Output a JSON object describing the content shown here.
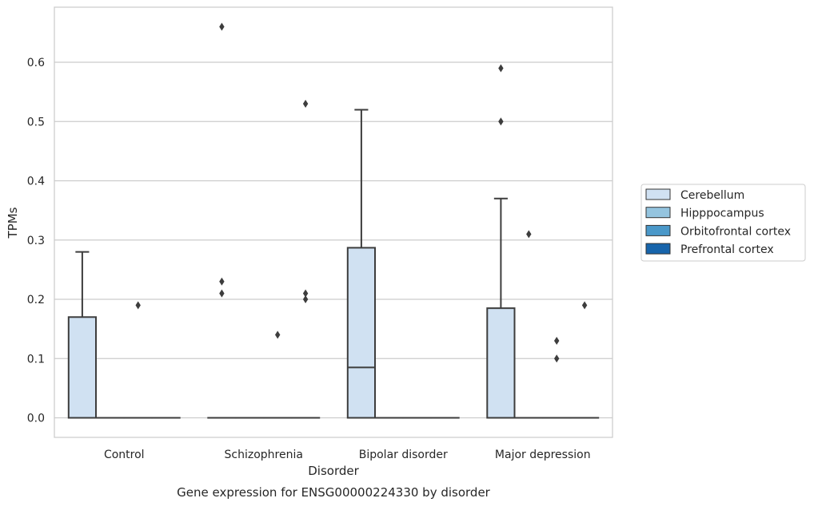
{
  "chart_data": {
    "type": "box",
    "xlabel": "Disorder",
    "ylabel": "TPMs",
    "caption": "Gene expression for ENSG00000224330 by disorder",
    "categories": [
      "Control",
      "Schizophrenia",
      "Bipolar disorder",
      "Major depression"
    ],
    "ylim": [
      -0.033,
      0.693
    ],
    "yticks": [
      0.0,
      0.1,
      0.2,
      0.3,
      0.4,
      0.5,
      0.6
    ],
    "ytick_labels": [
      "0.0",
      "0.1",
      "0.2",
      "0.3",
      "0.4",
      "0.5",
      "0.6"
    ],
    "grid": "horizontal",
    "legend_position": "right",
    "series": [
      {
        "name": "Cerebellum",
        "color": "#d0e1f2",
        "boxes": [
          {
            "q1": 0.0,
            "median": 0.0,
            "q3": 0.17,
            "whisker_low": 0.0,
            "whisker_high": 0.28,
            "outliers": []
          },
          {
            "q1": 0.0,
            "median": 0.0,
            "q3": 0.0,
            "whisker_low": 0.0,
            "whisker_high": 0.0,
            "outliers": [
              0.66,
              0.23,
              0.21
            ]
          },
          {
            "q1": 0.0,
            "median": 0.085,
            "q3": 0.287,
            "whisker_low": 0.0,
            "whisker_high": 0.52,
            "outliers": []
          },
          {
            "q1": 0.0,
            "median": 0.0,
            "q3": 0.185,
            "whisker_low": 0.0,
            "whisker_high": 0.37,
            "outliers": [
              0.59,
              0.5
            ]
          }
        ]
      },
      {
        "name": "Hipppocampus",
        "color": "#94c4df",
        "boxes": [
          {
            "q1": 0.0,
            "median": 0.0,
            "q3": 0.0,
            "whisker_low": 0.0,
            "whisker_high": 0.0,
            "outliers": []
          },
          {
            "q1": 0.0,
            "median": 0.0,
            "q3": 0.0,
            "whisker_low": 0.0,
            "whisker_high": 0.0,
            "outliers": []
          },
          {
            "q1": 0.0,
            "median": 0.0,
            "q3": 0.0,
            "whisker_low": 0.0,
            "whisker_high": 0.0,
            "outliers": []
          },
          {
            "q1": 0.0,
            "median": 0.0,
            "q3": 0.0,
            "whisker_low": 0.0,
            "whisker_high": 0.0,
            "outliers": [
              0.31
            ]
          }
        ]
      },
      {
        "name": "Orbitofrontal cortex",
        "color": "#4a98c9",
        "boxes": [
          {
            "q1": 0.0,
            "median": 0.0,
            "q3": 0.0,
            "whisker_low": 0.0,
            "whisker_high": 0.0,
            "outliers": [
              0.19
            ]
          },
          {
            "q1": 0.0,
            "median": 0.0,
            "q3": 0.0,
            "whisker_low": 0.0,
            "whisker_high": 0.0,
            "outliers": [
              0.14
            ]
          },
          {
            "q1": 0.0,
            "median": 0.0,
            "q3": 0.0,
            "whisker_low": 0.0,
            "whisker_high": 0.0,
            "outliers": []
          },
          {
            "q1": 0.0,
            "median": 0.0,
            "q3": 0.0,
            "whisker_low": 0.0,
            "whisker_high": 0.0,
            "outliers": [
              0.13,
              0.1
            ]
          }
        ]
      },
      {
        "name": "Prefrontal cortex",
        "color": "#1764ab",
        "boxes": [
          {
            "q1": 0.0,
            "median": 0.0,
            "q3": 0.0,
            "whisker_low": 0.0,
            "whisker_high": 0.0,
            "outliers": []
          },
          {
            "q1": 0.0,
            "median": 0.0,
            "q3": 0.0,
            "whisker_low": 0.0,
            "whisker_high": 0.0,
            "outliers": [
              0.53,
              0.21,
              0.2
            ]
          },
          {
            "q1": 0.0,
            "median": 0.0,
            "q3": 0.0,
            "whisker_low": 0.0,
            "whisker_high": 0.0,
            "outliers": []
          },
          {
            "q1": 0.0,
            "median": 0.0,
            "q3": 0.0,
            "whisker_low": 0.0,
            "whisker_high": 0.0,
            "outliers": [
              0.19
            ]
          }
        ]
      }
    ]
  }
}
